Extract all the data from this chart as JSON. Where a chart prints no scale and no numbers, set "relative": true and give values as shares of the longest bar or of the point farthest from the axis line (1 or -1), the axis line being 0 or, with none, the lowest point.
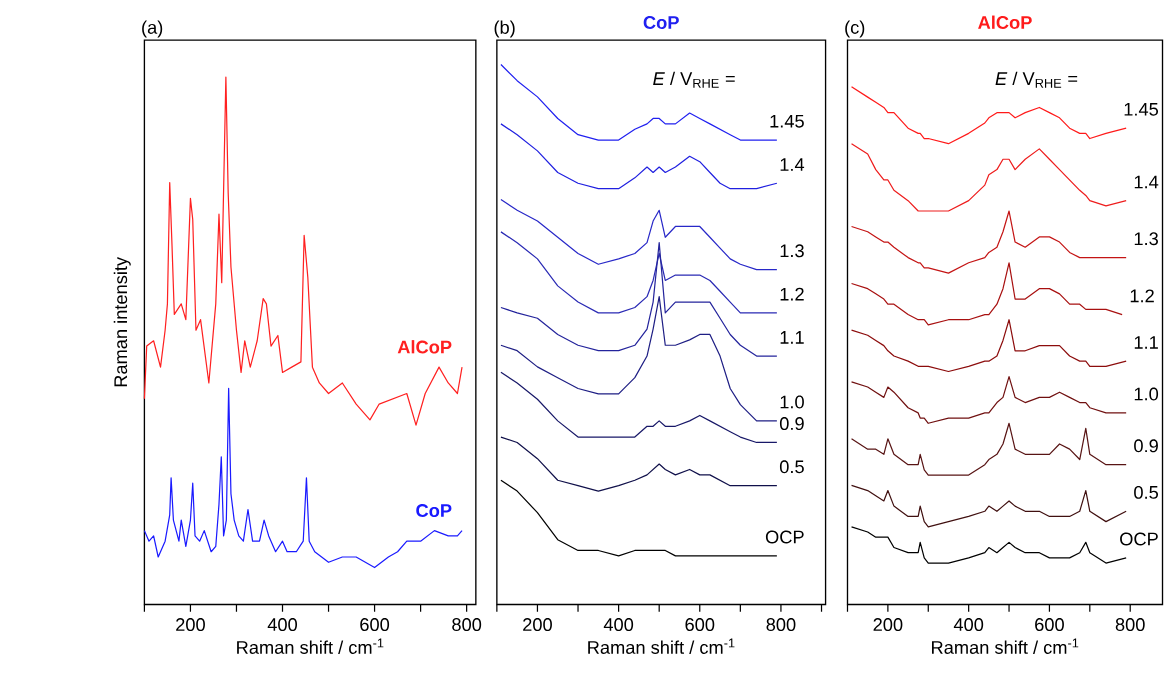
{
  "chart_data": [
    {
      "type": "line",
      "relative": true,
      "xlabel": "Raman shift / cm$^{-1}$",
      "ylabel": "Raman intensity",
      "annotations": [
        "(a)"
      ],
      "xlim": [
        100,
        820
      ],
      "xticks": [
        {
          "value": 100,
          "label": null
        },
        200,
        {
          "value": 300,
          "label": null
        },
        400,
        {
          "value": 500,
          "label": null
        },
        600,
        {
          "value": 700,
          "label": null
        },
        800
      ],
      "series": [
        {
          "name": "AlCoP",
          "color": "#ff2020",
          "x": [
            100,
            105,
            120,
            135,
            145,
            150,
            155,
            160,
            165,
            180,
            190,
            200,
            205,
            212,
            222,
            240,
            255,
            262,
            268,
            277,
            282,
            288,
            300,
            310,
            318,
            330,
            345,
            358,
            365,
            375,
            390,
            400,
            420,
            440,
            447,
            455,
            465,
            480,
            500,
            530,
            560,
            590,
            610,
            640,
            670,
            690,
            710,
            740,
            760,
            780,
            790
          ],
          "values": [
            0.39,
            0.49,
            0.5,
            0.45,
            0.52,
            0.57,
            0.8,
            0.68,
            0.55,
            0.57,
            0.54,
            0.77,
            0.73,
            0.52,
            0.54,
            0.42,
            0.57,
            0.74,
            0.61,
            1.0,
            0.78,
            0.64,
            0.52,
            0.44,
            0.5,
            0.45,
            0.5,
            0.58,
            0.57,
            0.49,
            0.51,
            0.44,
            0.45,
            0.46,
            0.7,
            0.62,
            0.45,
            0.42,
            0.4,
            0.42,
            0.38,
            0.35,
            0.38,
            0.39,
            0.4,
            0.34,
            0.4,
            0.45,
            0.42,
            0.4,
            0.45
          ]
        },
        {
          "name": "CoP",
          "color": "#1a1aff",
          "x": [
            100,
            110,
            120,
            130,
            145,
            155,
            158,
            163,
            175,
            180,
            190,
            200,
            205,
            210,
            220,
            230,
            245,
            255,
            262,
            267,
            272,
            278,
            283,
            288,
            295,
            305,
            315,
            325,
            335,
            350,
            360,
            370,
            385,
            400,
            410,
            430,
            445,
            452,
            458,
            470,
            500,
            530,
            560,
            600,
            630,
            650,
            670,
            700,
            730,
            760,
            780,
            790
          ],
          "values": [
            0.14,
            0.12,
            0.13,
            0.09,
            0.12,
            0.17,
            0.24,
            0.16,
            0.12,
            0.16,
            0.11,
            0.16,
            0.23,
            0.13,
            0.12,
            0.14,
            0.1,
            0.11,
            0.19,
            0.28,
            0.13,
            0.16,
            0.41,
            0.21,
            0.16,
            0.13,
            0.12,
            0.18,
            0.12,
            0.12,
            0.16,
            0.13,
            0.1,
            0.12,
            0.1,
            0.1,
            0.12,
            0.24,
            0.12,
            0.1,
            0.08,
            0.09,
            0.09,
            0.07,
            0.09,
            0.1,
            0.12,
            0.12,
            0.14,
            0.13,
            0.13,
            0.14
          ]
        }
      ]
    },
    {
      "type": "line",
      "relative": true,
      "title": "CoP",
      "xlabel": "Raman shift / cm$^{-1}$",
      "annotations": [
        "(b)",
        "*E* / V$_{RHE}$ ="
      ],
      "xlim": [
        100,
        910
      ],
      "xticks": [
        {
          "value": 100,
          "label": null
        },
        200,
        {
          "value": 300,
          "label": null
        },
        400,
        {
          "value": 500,
          "label": null
        },
        600,
        {
          "value": 700,
          "label": null
        },
        800,
        {
          "value": 900,
          "label": null
        }
      ],
      "x": [
        110,
        150,
        200,
        250,
        300,
        350,
        400,
        440,
        470,
        485,
        500,
        515,
        540,
        575,
        600,
        625,
        650,
        675,
        700,
        740,
        790
      ],
      "series": [
        {
          "name": "1.45",
          "color": "#2020f0",
          "values": [
            1.0,
            0.97,
            0.94,
            0.9,
            0.87,
            0.86,
            0.86,
            0.88,
            0.89,
            0.9,
            0.9,
            0.89,
            0.89,
            0.91,
            0.9,
            0.89,
            0.88,
            0.87,
            0.86,
            0.86,
            0.86
          ]
        },
        {
          "name": "1.4",
          "color": "#2020e0",
          "values": [
            0.89,
            0.87,
            0.84,
            0.8,
            0.78,
            0.77,
            0.77,
            0.79,
            0.81,
            0.8,
            0.81,
            0.8,
            0.81,
            0.83,
            0.82,
            0.8,
            0.78,
            0.77,
            0.77,
            0.77,
            0.78
          ]
        },
        {
          "name": "1.3",
          "color": "#2828c8",
          "values": [
            0.75,
            0.73,
            0.71,
            0.68,
            0.65,
            0.63,
            0.64,
            0.65,
            0.67,
            0.71,
            0.73,
            0.68,
            0.7,
            0.7,
            0.7,
            0.68,
            0.66,
            0.64,
            0.63,
            0.62,
            0.62
          ]
        },
        {
          "name": "1.2",
          "color": "#2a2ab4",
          "values": [
            0.69,
            0.67,
            0.64,
            0.59,
            0.56,
            0.54,
            0.54,
            0.55,
            0.57,
            0.6,
            0.65,
            0.6,
            0.61,
            0.61,
            0.61,
            0.6,
            0.58,
            0.56,
            0.54,
            0.54,
            0.54
          ]
        },
        {
          "name": "1.1",
          "color": "#24249c",
          "values": [
            0.55,
            0.54,
            0.53,
            0.5,
            0.48,
            0.47,
            0.47,
            0.48,
            0.51,
            0.56,
            0.67,
            0.54,
            0.56,
            0.56,
            0.56,
            0.56,
            0.53,
            0.5,
            0.48,
            0.46,
            0.46
          ]
        },
        {
          "name": "1.0",
          "color": "#1e1e84",
          "values": [
            0.48,
            0.47,
            0.44,
            0.42,
            0.4,
            0.39,
            0.39,
            0.42,
            0.46,
            0.51,
            0.57,
            0.48,
            0.48,
            0.49,
            0.5,
            0.5,
            0.46,
            0.4,
            0.37,
            0.34,
            0.34
          ]
        },
        {
          "name": "0.9",
          "color": "#181868",
          "values": [
            0.43,
            0.41,
            0.38,
            0.34,
            0.31,
            0.31,
            0.31,
            0.31,
            0.33,
            0.33,
            0.34,
            0.33,
            0.33,
            0.34,
            0.35,
            0.34,
            0.33,
            0.32,
            0.31,
            0.3,
            0.3
          ]
        },
        {
          "name": "0.5",
          "color": "#10104a",
          "values": [
            0.31,
            0.3,
            0.27,
            0.23,
            0.22,
            0.21,
            0.22,
            0.23,
            0.24,
            0.25,
            0.26,
            0.25,
            0.24,
            0.25,
            0.24,
            0.24,
            0.23,
            0.22,
            0.22,
            0.22,
            0.22
          ]
        },
        {
          "name": "OCP",
          "color": "#000000",
          "values": [
            0.23,
            0.21,
            0.17,
            0.12,
            0.1,
            0.1,
            0.09,
            0.1,
            0.1,
            0.1,
            0.1,
            0.1,
            0.09,
            0.09,
            0.09,
            0.09,
            0.09,
            0.09,
            0.09,
            0.09,
            0.09
          ]
        }
      ]
    },
    {
      "type": "line",
      "relative": true,
      "title": "AlCoP",
      "xlabel": "Raman shift / cm$^{-1}$",
      "annotations": [
        "(c)",
        "*E* / V$_{RHE}$ ="
      ],
      "xlim": [
        100,
        880
      ],
      "xticks": [
        {
          "value": 100,
          "label": null
        },
        200,
        {
          "value": 300,
          "label": null
        },
        400,
        {
          "value": 500,
          "label": null
        },
        600,
        {
          "value": 700,
          "label": null
        },
        800
      ],
      "x": [
        110,
        150,
        170,
        190,
        200,
        215,
        250,
        275,
        280,
        290,
        300,
        350,
        400,
        440,
        450,
        470,
        485,
        500,
        515,
        540,
        575,
        600,
        625,
        650,
        675,
        690,
        700,
        740,
        790
      ],
      "series": [
        {
          "name": "1.45",
          "color": "#ff1a1a",
          "values": [
            1.0,
            0.98,
            0.97,
            0.96,
            0.95,
            0.95,
            0.92,
            0.91,
            0.91,
            0.9,
            0.9,
            0.89,
            0.91,
            0.93,
            0.94,
            0.95,
            0.95,
            0.95,
            0.94,
            0.95,
            0.96,
            0.95,
            0.94,
            0.92,
            0.91,
            0.91,
            0.9,
            0.91,
            0.92
          ]
        },
        {
          "name": "1.4",
          "color": "#ee1c1c",
          "values": [
            0.89,
            0.87,
            0.84,
            0.82,
            0.82,
            0.8,
            0.78,
            0.76,
            0.76,
            0.76,
            0.76,
            0.76,
            0.78,
            0.81,
            0.83,
            0.84,
            0.86,
            0.86,
            0.84,
            0.86,
            0.88,
            0.86,
            0.84,
            0.82,
            0.8,
            0.79,
            0.78,
            0.77,
            0.78
          ]
        },
        {
          "name": "1.3",
          "color": "#c41414",
          "values": [
            0.73,
            0.72,
            0.71,
            0.7,
            0.7,
            0.69,
            0.67,
            0.66,
            0.66,
            0.65,
            0.65,
            0.64,
            0.66,
            0.67,
            0.68,
            0.69,
            0.72,
            0.76,
            0.7,
            0.69,
            0.71,
            0.71,
            0.7,
            0.68,
            0.67,
            0.67,
            0.67,
            0.67,
            0.67
          ]
        },
        {
          "name": "1.2",
          "color": "#a81010",
          "x": [
            110,
            150,
            170,
            190,
            200,
            215,
            250,
            275,
            280,
            290,
            300,
            350,
            400,
            440,
            450,
            470,
            485,
            500,
            515,
            540,
            575,
            600,
            625,
            650,
            675,
            690,
            700,
            740,
            780
          ],
          "values": [
            0.62,
            0.61,
            0.6,
            0.59,
            0.58,
            0.58,
            0.56,
            0.55,
            0.55,
            0.55,
            0.54,
            0.55,
            0.55,
            0.56,
            0.56,
            0.58,
            0.61,
            0.66,
            0.59,
            0.59,
            0.61,
            0.61,
            0.6,
            0.58,
            0.58,
            0.57,
            0.57,
            0.57,
            0.56
          ]
        },
        {
          "name": "1.1",
          "color": "#8c0c0c",
          "values": [
            0.53,
            0.52,
            0.51,
            0.5,
            0.49,
            0.48,
            0.47,
            0.46,
            0.46,
            0.46,
            0.46,
            0.45,
            0.46,
            0.47,
            0.47,
            0.48,
            0.51,
            0.55,
            0.49,
            0.49,
            0.5,
            0.5,
            0.5,
            0.48,
            0.47,
            0.47,
            0.46,
            0.46,
            0.47
          ]
        },
        {
          "name": "1.0",
          "color": "#701010",
          "values": [
            0.43,
            0.42,
            0.41,
            0.4,
            0.42,
            0.41,
            0.38,
            0.37,
            0.36,
            0.36,
            0.35,
            0.36,
            0.36,
            0.37,
            0.37,
            0.39,
            0.4,
            0.44,
            0.4,
            0.39,
            0.4,
            0.4,
            0.41,
            0.4,
            0.39,
            0.39,
            0.38,
            0.37,
            0.37
          ]
        },
        {
          "name": "0.9",
          "color": "#581414",
          "values": [
            0.32,
            0.3,
            0.3,
            0.29,
            0.32,
            0.29,
            0.27,
            0.27,
            0.29,
            0.26,
            0.25,
            0.25,
            0.25,
            0.27,
            0.28,
            0.29,
            0.31,
            0.35,
            0.3,
            0.29,
            0.29,
            0.29,
            0.31,
            0.3,
            0.28,
            0.34,
            0.29,
            0.27,
            0.27
          ]
        },
        {
          "name": "0.5",
          "color": "#401010",
          "values": [
            0.23,
            0.22,
            0.21,
            0.2,
            0.22,
            0.19,
            0.17,
            0.17,
            0.19,
            0.16,
            0.15,
            0.16,
            0.17,
            0.18,
            0.19,
            0.18,
            0.19,
            0.2,
            0.19,
            0.18,
            0.18,
            0.17,
            0.17,
            0.17,
            0.18,
            0.22,
            0.18,
            0.16,
            0.18
          ]
        },
        {
          "name": "OCP",
          "color": "#000000",
          "values": [
            0.15,
            0.14,
            0.13,
            0.13,
            0.13,
            0.11,
            0.1,
            0.1,
            0.12,
            0.09,
            0.08,
            0.08,
            0.09,
            0.1,
            0.11,
            0.1,
            0.11,
            0.12,
            0.11,
            0.1,
            0.1,
            0.09,
            0.09,
            0.09,
            0.1,
            0.12,
            0.1,
            0.08,
            0.09
          ]
        }
      ]
    }
  ]
}
